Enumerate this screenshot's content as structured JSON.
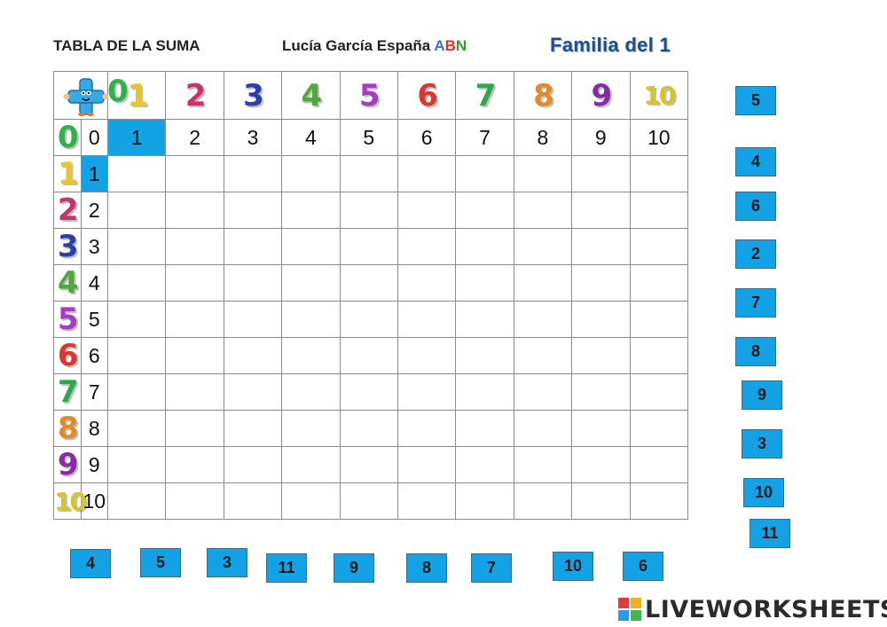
{
  "header": {
    "title": "TABLA DE LA SUMA",
    "author": "Lucía García España",
    "abn": [
      "A",
      "B",
      "N"
    ],
    "family": "Familia del 1"
  },
  "grid": {
    "corner_number": "0",
    "header_numbers": [
      "1",
      "2",
      "3",
      "4",
      "5",
      "6",
      "7",
      "8",
      "9",
      "10"
    ],
    "row_header_numbers": [
      "0",
      "1",
      "2",
      "3",
      "4",
      "5",
      "6",
      "7",
      "8",
      "9",
      "10"
    ],
    "digit_colors": {
      "0": "#2fb24a",
      "1": "#e8c62a",
      "2": "#c8326e",
      "3": "#2a3fa8",
      "4": "#4fa83a",
      "5": "#a63cc4",
      "6": "#d8382e",
      "7": "#2ea84a",
      "8": "#e08a2a",
      "9": "#8a2aa8",
      "10": "#d8c42a"
    },
    "zero_row_values": [
      "0",
      "1",
      "2",
      "3",
      "4",
      "5",
      "6",
      "7",
      "8",
      "9",
      "10"
    ],
    "first_column_values": [
      "1",
      "2",
      "3",
      "4",
      "5",
      "6",
      "7",
      "8",
      "9",
      "10"
    ],
    "highlight_color": "#13a2e6"
  },
  "right_tiles": [
    "5",
    "4",
    "6",
    "2",
    "7",
    "8",
    "9",
    "3",
    "10",
    "11"
  ],
  "bottom_tiles": [
    "4",
    "5",
    "3",
    "11",
    "9",
    "8",
    "7",
    "10",
    "6"
  ],
  "brand": {
    "text": "LIVEWORKSHEETS"
  }
}
